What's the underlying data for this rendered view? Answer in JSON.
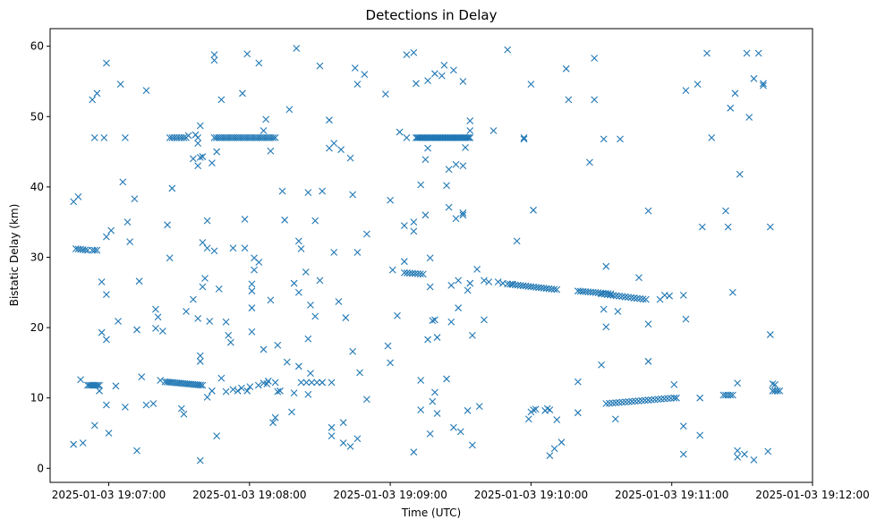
{
  "chart_data": {
    "type": "scatter",
    "title": "Detections in Delay",
    "xlabel": "Time (UTC)",
    "ylabel": "Bistatic Delay (km)",
    "marker": "x",
    "color": "#1f77b4",
    "xlim": [
      -25,
      300
    ],
    "ylim": [
      -2,
      62.5
    ],
    "x_unit": "seconds after 2025-01-03 19:07:00",
    "x_ticks": [
      {
        "value": 0,
        "label": "2025-01-03 19:07:00"
      },
      {
        "value": 60,
        "label": "2025-01-03 19:08:00"
      },
      {
        "value": 120,
        "label": "2025-01-03 19:09:00"
      },
      {
        "value": 180,
        "label": "2025-01-03 19:10:00"
      },
      {
        "value": 240,
        "label": "2025-01-03 19:11:00"
      },
      {
        "value": 300,
        "label": "2025-01-03 19:12:00"
      }
    ],
    "y_ticks": [
      {
        "value": 0,
        "label": "0"
      },
      {
        "value": 10,
        "label": "10"
      },
      {
        "value": 20,
        "label": "20"
      },
      {
        "value": 30,
        "label": "30"
      },
      {
        "value": 40,
        "label": "40"
      },
      {
        "value": 50,
        "label": "50"
      },
      {
        "value": 60,
        "label": "60"
      }
    ],
    "tracks": [
      {
        "name": "track-a",
        "x0": -14,
        "x1": -9,
        "y0": 31.2,
        "y1": 31.0,
        "n": 6
      },
      {
        "name": "track-b",
        "x0": -7,
        "x1": -5,
        "y0": 31.0,
        "y1": 31.0,
        "n": 3
      },
      {
        "name": "track-c",
        "x0": -9,
        "x1": -4,
        "y0": 11.8,
        "y1": 11.8,
        "n": 8
      },
      {
        "name": "track-d",
        "x0": 24,
        "x1": 40,
        "y0": 12.3,
        "y1": 11.8,
        "n": 20
      },
      {
        "name": "track-e",
        "x0": 26,
        "x1": 33,
        "y0": 47.0,
        "y1": 47.0,
        "n": 8
      },
      {
        "name": "track-f",
        "x0": 45,
        "x1": 71,
        "y0": 47.0,
        "y1": 47.0,
        "n": 30
      },
      {
        "name": "track-g",
        "x0": 53,
        "x1": 71,
        "y0": 11.2,
        "y1": 12.2,
        "n": 6
      },
      {
        "name": "track-h",
        "x0": 82,
        "x1": 91,
        "y0": 12.2,
        "y1": 12.2,
        "n": 5
      },
      {
        "name": "track-i",
        "x0": 131,
        "x1": 154,
        "y0": 47.0,
        "y1": 47.0,
        "n": 40
      },
      {
        "name": "track-j",
        "x0": 126,
        "x1": 134,
        "y0": 27.8,
        "y1": 27.6,
        "n": 8
      },
      {
        "name": "track-k",
        "x0": 170,
        "x1": 191,
        "y0": 26.2,
        "y1": 25.4,
        "n": 20
      },
      {
        "name": "track-l",
        "x0": 200,
        "x1": 214,
        "y0": 25.2,
        "y1": 24.8,
        "n": 14
      },
      {
        "name": "track-m",
        "x0": 210,
        "x1": 229,
        "y0": 24.8,
        "y1": 24.0,
        "n": 16
      },
      {
        "name": "track-n",
        "x0": 212,
        "x1": 241,
        "y0": 9.2,
        "y1": 10.0,
        "n": 22
      },
      {
        "name": "track-o",
        "x0": 262,
        "x1": 266,
        "y0": 10.4,
        "y1": 10.4,
        "n": 5
      },
      {
        "name": "track-p",
        "x0": 283,
        "x1": 286,
        "y0": 11.0,
        "y1": 11.0,
        "n": 4
      }
    ],
    "points": [
      [
        -15,
        37.9
      ],
      [
        -13,
        38.6
      ],
      [
        -15,
        3.4
      ],
      [
        -11,
        3.6
      ],
      [
        -12,
        12.6
      ],
      [
        -5,
        53.3
      ],
      [
        -7,
        52.4
      ],
      [
        -6,
        47.0
      ],
      [
        -2,
        47.0
      ],
      [
        -1,
        57.6
      ],
      [
        -3,
        26.5
      ],
      [
        -1,
        32.9
      ],
      [
        1,
        33.8
      ],
      [
        -1,
        24.7
      ],
      [
        -3,
        19.3
      ],
      [
        -1,
        18.3
      ],
      [
        -4,
        11.0
      ],
      [
        -1,
        9.0
      ],
      [
        0,
        5.0
      ],
      [
        -6,
        6.1
      ],
      [
        5,
        54.6
      ],
      [
        6,
        40.7
      ],
      [
        7,
        47.0
      ],
      [
        8,
        35.0
      ],
      [
        9,
        32.2
      ],
      [
        11,
        38.3
      ],
      [
        13,
        26.6
      ],
      [
        14,
        13.0
      ],
      [
        12,
        19.7
      ],
      [
        16,
        53.7
      ],
      [
        16,
        9.0
      ],
      [
        12,
        2.5
      ],
      [
        4,
        20.9
      ],
      [
        3,
        11.7
      ],
      [
        7,
        8.7
      ],
      [
        20,
        22.6
      ],
      [
        21,
        21.5
      ],
      [
        20,
        19.9
      ],
      [
        19,
        9.2
      ],
      [
        23,
        19.5
      ],
      [
        25,
        34.6
      ],
      [
        26,
        29.9
      ],
      [
        27,
        39.8
      ],
      [
        22,
        12.5
      ],
      [
        33,
        22.3
      ],
      [
        31,
        8.5
      ],
      [
        32,
        7.7
      ],
      [
        34,
        47.3
      ],
      [
        37,
        47.4
      ],
      [
        39,
        48.7
      ],
      [
        38,
        47.0
      ],
      [
        36,
        44.0
      ],
      [
        38,
        43.0
      ],
      [
        39,
        44.2
      ],
      [
        40,
        44.3
      ],
      [
        38,
        46.2
      ],
      [
        36,
        24.0
      ],
      [
        38,
        21.3
      ],
      [
        40,
        25.8
      ],
      [
        41,
        27.0
      ],
      [
        40,
        32.1
      ],
      [
        42,
        35.2
      ],
      [
        42,
        31.3
      ],
      [
        43,
        20.9
      ],
      [
        45,
        30.9
      ],
      [
        44,
        43.4
      ],
      [
        45,
        58.8
      ],
      [
        45,
        58.0
      ],
      [
        46,
        45.0
      ],
      [
        48,
        52.4
      ],
      [
        39,
        16.0
      ],
      [
        39,
        15.2
      ],
      [
        39,
        1.1
      ],
      [
        42,
        10.1
      ],
      [
        44,
        11.0
      ],
      [
        46,
        4.6
      ],
      [
        48,
        12.8
      ],
      [
        47,
        25.5
      ],
      [
        50,
        20.8
      ],
      [
        51,
        18.9
      ],
      [
        52,
        17.9
      ],
      [
        50,
        10.9
      ],
      [
        53,
        31.3
      ],
      [
        55,
        11.0
      ],
      [
        57,
        53.3
      ],
      [
        58,
        35.4
      ],
      [
        58,
        31.3
      ],
      [
        59,
        58.9
      ],
      [
        59,
        11.0
      ],
      [
        61,
        25.2
      ],
      [
        61,
        26.2
      ],
      [
        62,
        29.9
      ],
      [
        61,
        22.8
      ],
      [
        62,
        28.2
      ],
      [
        61,
        19.4
      ],
      [
        64,
        29.3
      ],
      [
        64,
        57.6
      ],
      [
        67,
        49.6
      ],
      [
        66,
        16.9
      ],
      [
        66,
        48.0
      ],
      [
        66,
        12.1
      ],
      [
        68,
        12.4
      ],
      [
        69,
        45.1
      ],
      [
        69,
        23.9
      ],
      [
        70,
        6.5
      ],
      [
        71,
        7.2
      ],
      [
        72,
        17.5
      ],
      [
        72,
        10.9
      ],
      [
        73,
        11.0
      ],
      [
        74,
        39.4
      ],
      [
        75,
        35.3
      ],
      [
        76,
        15.1
      ],
      [
        78,
        8.0
      ],
      [
        79,
        10.7
      ],
      [
        77,
        51.0
      ],
      [
        80,
        59.7
      ],
      [
        79,
        26.3
      ],
      [
        81,
        32.3
      ],
      [
        81,
        25.0
      ],
      [
        82,
        31.2
      ],
      [
        81,
        14.5
      ],
      [
        84,
        27.9
      ],
      [
        85,
        18.4
      ],
      [
        85,
        39.2
      ],
      [
        85,
        10.5
      ],
      [
        86,
        13.5
      ],
      [
        86,
        23.2
      ],
      [
        88,
        35.2
      ],
      [
        88,
        21.6
      ],
      [
        90,
        26.7
      ],
      [
        90,
        57.2
      ],
      [
        91,
        39.4
      ],
      [
        91,
        12.2
      ],
      [
        94,
        49.5
      ],
      [
        94,
        45.5
      ],
      [
        95,
        5.8
      ],
      [
        95,
        4.6
      ],
      [
        95,
        12.2
      ],
      [
        96,
        30.7
      ],
      [
        96,
        46.2
      ],
      [
        99,
        45.3
      ],
      [
        98,
        23.7
      ],
      [
        100,
        6.5
      ],
      [
        100,
        3.6
      ],
      [
        101,
        21.4
      ],
      [
        103,
        44.1
      ],
      [
        103,
        3.1
      ],
      [
        104,
        38.9
      ],
      [
        104,
        16.6
      ],
      [
        105,
        56.9
      ],
      [
        106,
        54.6
      ],
      [
        106,
        30.7
      ],
      [
        106,
        4.2
      ],
      [
        107,
        13.6
      ],
      [
        109,
        56.0
      ],
      [
        110,
        9.8
      ],
      [
        110,
        33.3
      ],
      [
        118,
        53.2
      ],
      [
        120,
        38.1
      ],
      [
        119,
        17.4
      ],
      [
        120,
        15.0
      ],
      [
        121,
        28.2
      ],
      [
        123,
        21.7
      ],
      [
        124,
        47.8
      ],
      [
        126,
        34.5
      ],
      [
        126,
        29.4
      ],
      [
        127,
        58.8
      ],
      [
        127,
        47.0
      ],
      [
        130,
        59.1
      ],
      [
        130,
        35.0
      ],
      [
        130,
        33.7
      ],
      [
        130,
        2.3
      ],
      [
        131,
        54.7
      ],
      [
        133,
        12.5
      ],
      [
        133,
        8.3
      ],
      [
        133,
        40.3
      ],
      [
        135,
        43.9
      ],
      [
        135,
        36.0
      ],
      [
        136,
        45.5
      ],
      [
        136,
        55.1
      ],
      [
        136,
        18.3
      ],
      [
        137,
        29.9
      ],
      [
        137,
        25.8
      ],
      [
        137,
        4.9
      ],
      [
        138,
        9.5
      ],
      [
        138,
        21.0
      ],
      [
        139,
        10.8
      ],
      [
        139,
        56.1
      ],
      [
        139,
        21.1
      ],
      [
        140,
        7.8
      ],
      [
        140,
        18.6
      ],
      [
        142,
        55.8
      ],
      [
        143,
        57.3
      ],
      [
        144,
        40.2
      ],
      [
        144,
        12.7
      ],
      [
        145,
        37.1
      ],
      [
        145,
        42.5
      ],
      [
        146,
        26.0
      ],
      [
        146,
        20.8
      ],
      [
        147,
        56.6
      ],
      [
        147,
        5.8
      ],
      [
        148,
        43.2
      ],
      [
        148,
        35.5
      ],
      [
        149,
        26.7
      ],
      [
        149,
        22.8
      ],
      [
        150,
        5.2
      ],
      [
        151,
        36.3
      ],
      [
        151,
        36.0
      ],
      [
        151,
        55.0
      ],
      [
        151,
        43.0
      ],
      [
        152,
        45.6
      ],
      [
        153,
        8.2
      ],
      [
        153,
        25.3
      ],
      [
        154,
        26.3
      ],
      [
        154,
        49.4
      ],
      [
        154,
        48.0
      ],
      [
        155,
        18.9
      ],
      [
        155,
        3.3
      ],
      [
        157,
        28.3
      ],
      [
        158,
        8.8
      ],
      [
        160,
        26.7
      ],
      [
        160,
        21.1
      ],
      [
        162,
        26.5
      ],
      [
        164,
        48.0
      ],
      [
        166,
        26.5
      ],
      [
        168,
        26.3
      ],
      [
        170,
        59.5
      ],
      [
        172,
        26.2
      ],
      [
        174,
        32.3
      ],
      [
        177,
        47.0
      ],
      [
        177,
        46.8
      ],
      [
        179,
        7.0
      ],
      [
        180,
        54.6
      ],
      [
        181,
        36.7
      ],
      [
        180,
        8.0
      ],
      [
        181,
        8.3
      ],
      [
        182,
        8.4
      ],
      [
        186,
        8.2
      ],
      [
        187,
        8.5
      ],
      [
        188,
        8.3
      ],
      [
        188,
        1.8
      ],
      [
        190,
        2.8
      ],
      [
        191,
        6.9
      ],
      [
        193,
        3.7
      ],
      [
        195,
        56.8
      ],
      [
        196,
        52.4
      ],
      [
        200,
        12.3
      ],
      [
        200,
        7.9
      ],
      [
        205,
        43.5
      ],
      [
        207,
        58.3
      ],
      [
        207,
        52.4
      ],
      [
        211,
        46.8
      ],
      [
        212,
        28.7
      ],
      [
        210,
        14.7
      ],
      [
        211,
        22.6
      ],
      [
        212,
        20.1
      ],
      [
        216,
        7.0
      ],
      [
        217,
        22.3
      ],
      [
        218,
        46.8
      ],
      [
        226,
        27.1
      ],
      [
        230,
        36.6
      ],
      [
        230,
        20.5
      ],
      [
        230,
        15.2
      ],
      [
        235,
        24.0
      ],
      [
        237,
        24.6
      ],
      [
        239,
        24.5
      ],
      [
        241,
        11.9
      ],
      [
        242,
        10.0
      ],
      [
        245,
        24.6
      ],
      [
        246,
        21.2
      ],
      [
        246,
        53.7
      ],
      [
        245,
        6.0
      ],
      [
        245,
        2.0
      ],
      [
        251,
        54.6
      ],
      [
        252,
        10.0
      ],
      [
        253,
        34.3
      ],
      [
        252,
        4.7
      ],
      [
        255,
        59.0
      ],
      [
        257,
        47.0
      ],
      [
        263,
        36.6
      ],
      [
        264,
        34.3
      ],
      [
        265,
        51.2
      ],
      [
        266,
        25.0
      ],
      [
        267,
        53.3
      ],
      [
        268,
        12.1
      ],
      [
        268,
        2.5
      ],
      [
        268,
        1.6
      ],
      [
        269,
        41.8
      ],
      [
        271,
        2.0
      ],
      [
        272,
        59.0
      ],
      [
        273,
        49.9
      ],
      [
        275,
        55.4
      ],
      [
        275,
        1.2
      ],
      [
        277,
        59.0
      ],
      [
        279,
        54.7
      ],
      [
        279,
        54.4
      ],
      [
        281,
        2.4
      ],
      [
        282,
        34.3
      ],
      [
        282,
        19.0
      ],
      [
        283,
        12.0
      ],
      [
        284,
        11.9
      ]
    ]
  }
}
